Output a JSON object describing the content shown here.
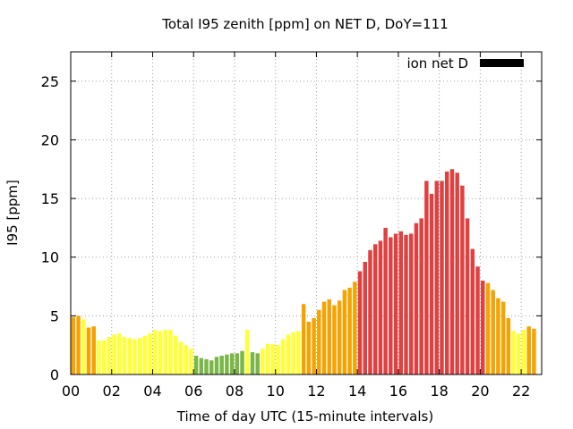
{
  "chart_data": {
    "type": "bar",
    "title": "Total I95 zenith [ppm] on NET D, DoY=111",
    "xlabel": "Time of day UTC (15-minute intervals)",
    "ylabel": "I95 [ppm]",
    "xlim": [
      0,
      23
    ],
    "ylim": [
      0,
      27.5
    ],
    "x_ticks": [
      0,
      2,
      4,
      6,
      8,
      10,
      12,
      14,
      16,
      18,
      20,
      22
    ],
    "x_tick_labels": [
      "00",
      "02",
      "04",
      "06",
      "08",
      "10",
      "12",
      "14",
      "16",
      "18",
      "20",
      "22"
    ],
    "y_ticks": [
      0,
      5,
      10,
      15,
      20,
      25
    ],
    "y_tick_labels": [
      "0",
      "5",
      "10",
      "15",
      "20",
      "25"
    ],
    "grid": true,
    "legend": {
      "label": "ion net D",
      "position": "top-right",
      "color": "#000000"
    },
    "bar_interval_hours": 0.25,
    "colors": {
      "green": "#7ab648",
      "yellow": "#ffff33",
      "orange": "#f5a300",
      "red": "#e04040"
    },
    "x": [
      0.0,
      0.25,
      0.5,
      0.75,
      1.0,
      1.25,
      1.5,
      1.75,
      2.0,
      2.25,
      2.5,
      2.75,
      3.0,
      3.25,
      3.5,
      3.75,
      4.0,
      4.25,
      4.5,
      4.75,
      5.0,
      5.25,
      5.5,
      5.75,
      6.0,
      6.25,
      6.5,
      6.75,
      7.0,
      7.25,
      7.5,
      7.75,
      8.0,
      8.25,
      8.5,
      8.75,
      9.0,
      9.25,
      9.5,
      9.75,
      10.0,
      10.25,
      10.5,
      10.75,
      11.0,
      11.25,
      11.5,
      11.75,
      12.0,
      12.25,
      12.5,
      12.75,
      13.0,
      13.25,
      13.5,
      13.75,
      14.0,
      14.25,
      14.5,
      14.75,
      15.0,
      15.25,
      15.5,
      15.75,
      16.0,
      16.25,
      16.5,
      16.75,
      17.0,
      17.25,
      17.5,
      17.75,
      18.0,
      18.25,
      18.5,
      18.75,
      19.0,
      19.25,
      19.5,
      19.75,
      20.0,
      20.25,
      20.5,
      20.75,
      21.0,
      21.25,
      21.5,
      21.75,
      22.0,
      22.25,
      22.5
    ],
    "values": [
      4.9,
      5.0,
      4.7,
      4.0,
      4.1,
      2.9,
      2.9,
      3.2,
      3.4,
      3.5,
      3.2,
      3.1,
      3.0,
      3.1,
      3.3,
      3.5,
      3.8,
      3.7,
      3.8,
      3.8,
      3.3,
      2.8,
      2.5,
      2.2,
      1.6,
      1.4,
      1.3,
      1.2,
      1.5,
      1.6,
      1.7,
      1.8,
      1.8,
      2.0,
      3.8,
      1.9,
      1.8,
      2.2,
      2.6,
      2.6,
      2.5,
      3.0,
      3.4,
      3.6,
      3.7,
      6.0,
      4.5,
      4.8,
      5.5,
      6.2,
      6.4,
      5.9,
      6.3,
      7.2,
      7.4,
      7.9,
      8.8,
      9.6,
      10.6,
      11.1,
      11.4,
      12.5,
      11.7,
      12.0,
      12.2,
      11.9,
      12.0,
      12.9,
      13.3,
      16.5,
      15.4,
      16.5,
      16.5,
      17.3,
      17.5,
      17.2,
      16.1,
      13.3,
      10.7,
      9.2,
      8.0,
      7.8,
      7.2,
      6.5,
      6.2,
      4.8,
      3.7,
      3.5,
      3.8,
      4.1,
      3.9
    ],
    "bar_colors": [
      "orange",
      "orange",
      "yellow",
      "orange",
      "orange",
      "yellow",
      "yellow",
      "yellow",
      "yellow",
      "yellow",
      "yellow",
      "yellow",
      "yellow",
      "yellow",
      "yellow",
      "yellow",
      "yellow",
      "yellow",
      "yellow",
      "yellow",
      "yellow",
      "yellow",
      "yellow",
      "yellow",
      "green",
      "green",
      "green",
      "green",
      "green",
      "green",
      "green",
      "green",
      "green",
      "green",
      "yellow",
      "green",
      "green",
      "yellow",
      "yellow",
      "yellow",
      "yellow",
      "yellow",
      "yellow",
      "yellow",
      "yellow",
      "orange",
      "orange",
      "orange",
      "orange",
      "orange",
      "orange",
      "orange",
      "orange",
      "orange",
      "orange",
      "orange",
      "red",
      "red",
      "red",
      "red",
      "red",
      "red",
      "red",
      "red",
      "red",
      "red",
      "red",
      "red",
      "red",
      "red",
      "red",
      "red",
      "red",
      "red",
      "red",
      "red",
      "red",
      "red",
      "red",
      "red",
      "red",
      "orange",
      "orange",
      "orange",
      "orange",
      "orange",
      "yellow",
      "yellow",
      "yellow",
      "orange",
      "orange"
    ]
  }
}
